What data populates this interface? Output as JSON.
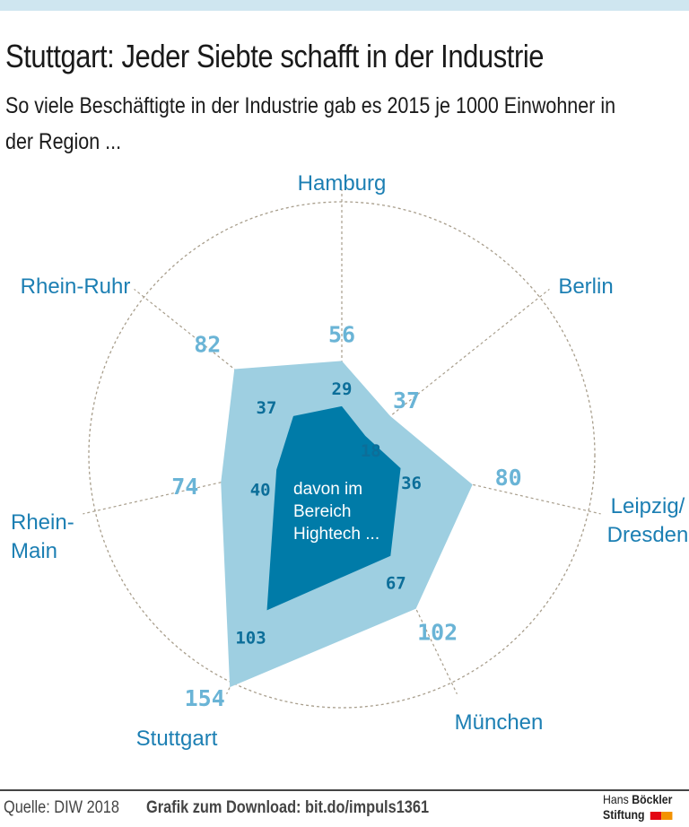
{
  "header": {
    "title": "Stuttgart: Jeder Siebte schafft in der Industrie",
    "subtitle": "So viele Beschäftigte in der Industrie gab es 2015 je 1000 Einwohner in der Region ..."
  },
  "chart_data": {
    "type": "radar",
    "title": "Stuttgart: Jeder Siebte schafft in der Industrie",
    "categories": [
      "Hamburg",
      "Berlin",
      "Leipzig/ Dresden",
      "München",
      "Stuttgart",
      "Rhein- Main",
      "Rhein-Ruhr"
    ],
    "series": [
      {
        "name": "Beschäftigte in der Industrie je 1000 Einwohner",
        "values": [
          56,
          37,
          80,
          102,
          154,
          74,
          82
        ],
        "color": "#9ecfe1"
      },
      {
        "name": "davon im Bereich Hightech ...",
        "values": [
          29,
          18,
          36,
          67,
          103,
          40,
          37
        ],
        "color": "#007ba8"
      }
    ],
    "rmax": 154,
    "inner_label": "davon im Bereich Hightech ..."
  },
  "colors": {
    "label": "#1c7fb3",
    "outer_value": "#6ab4d6",
    "inner_value": "#0c6e99",
    "grid": "#a89e8c"
  },
  "footer": {
    "source": "Quelle: DIW 2018",
    "download": "Grafik zum Download: bit.do/impuls1361",
    "logo_line1_light": "Hans",
    "logo_line1_bold": "Böckler",
    "logo_line2": "Stiftung"
  }
}
